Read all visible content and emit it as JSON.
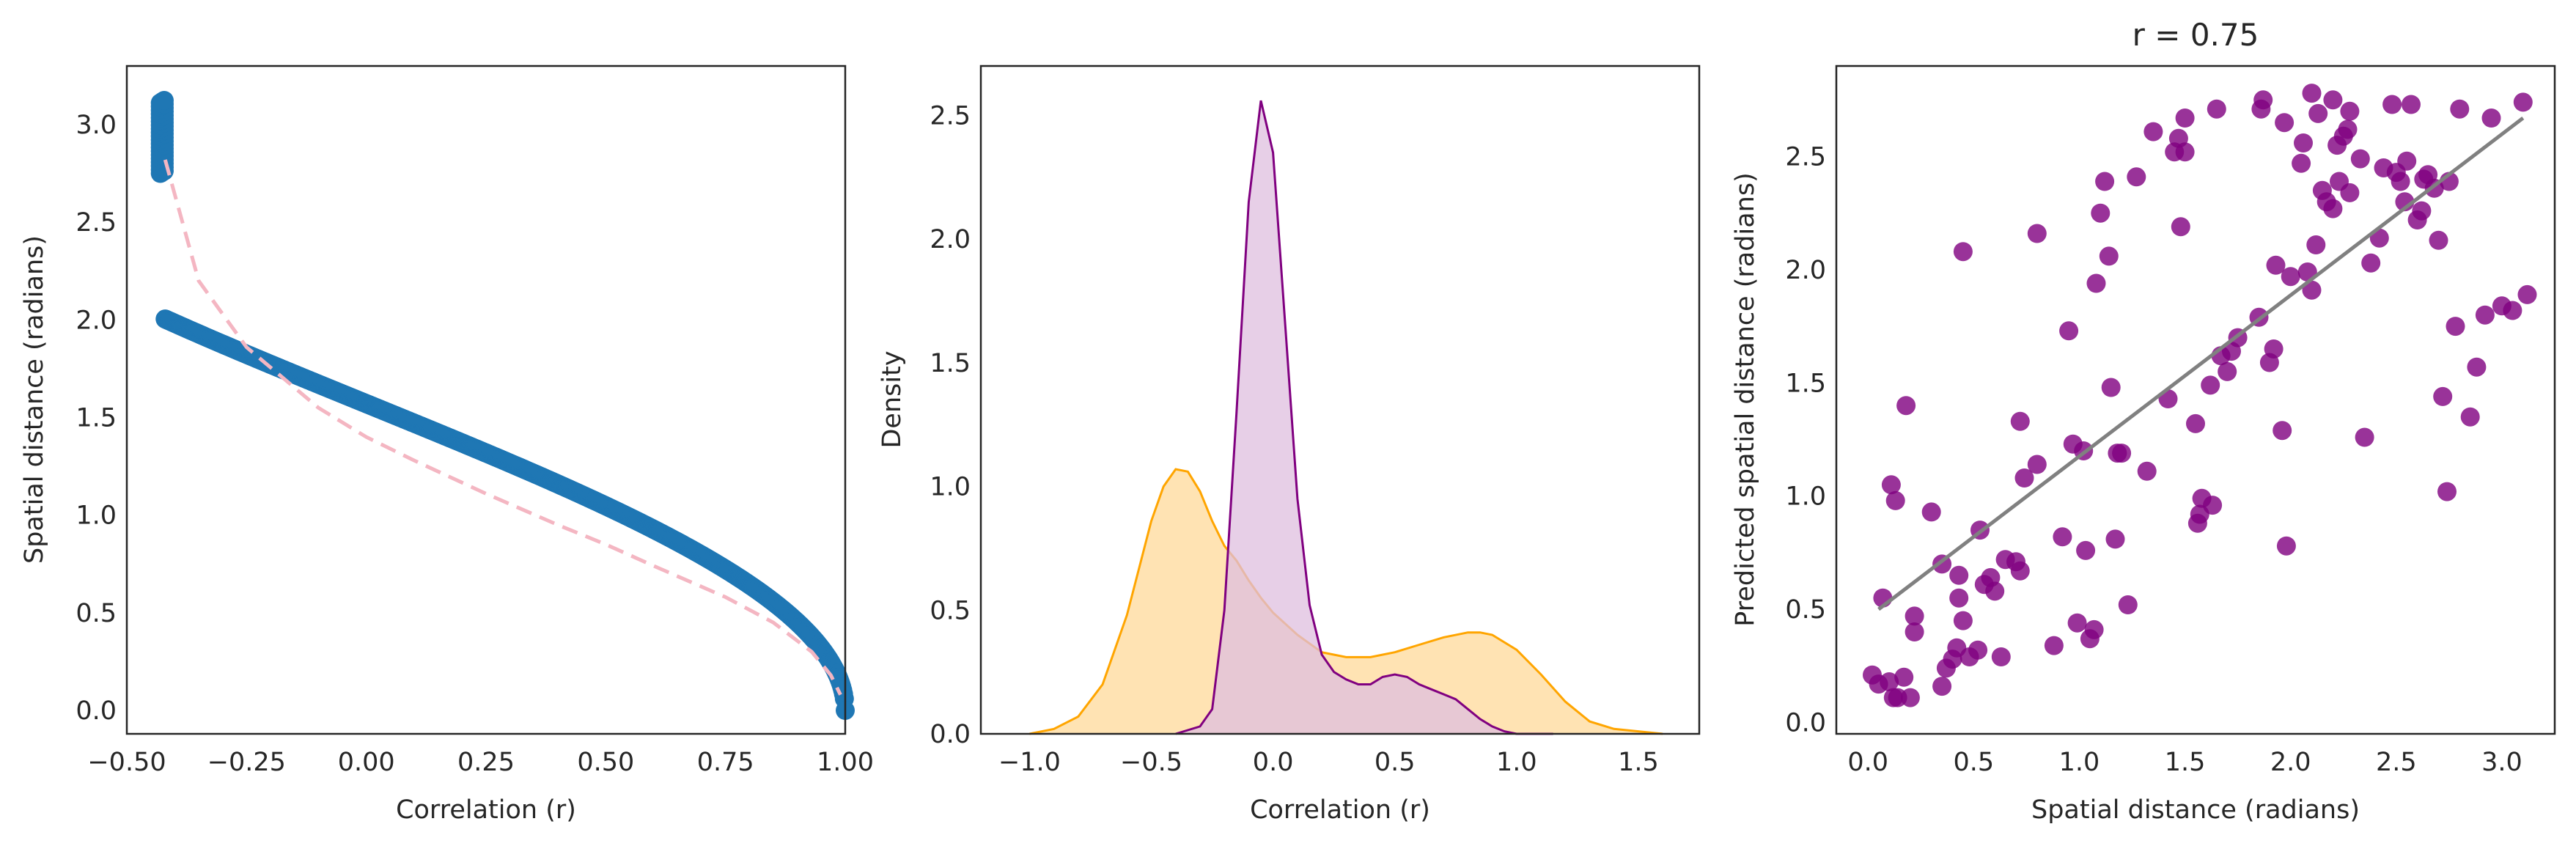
{
  "chart_data": [
    {
      "type": "scatter",
      "title": "",
      "xlabel": "Correlation (r)",
      "ylabel": "Spatial distance (radians)",
      "xlim": [
        -0.5,
        1.0
      ],
      "ylim": [
        -0.12,
        3.3
      ],
      "xticks": [
        "−0.50",
        "−0.25",
        "0.00",
        "0.25",
        "0.50",
        "0.75",
        "1.00"
      ],
      "xtick_values": [
        -0.5,
        -0.25,
        0.0,
        0.25,
        0.5,
        0.75,
        1.0
      ],
      "yticks": [
        "0.0",
        "0.5",
        "1.0",
        "1.5",
        "2.0",
        "2.5",
        "3.0"
      ],
      "ytick_values": [
        0.0,
        0.5,
        1.0,
        1.5,
        2.0,
        2.5,
        3.0
      ],
      "grid": false,
      "series": [
        {
          "kind": "points",
          "color": "#1f77b4",
          "relation": "y = arccos(r)",
          "x_range": [
            -0.42,
            1.0
          ],
          "n_points": 800
        },
        {
          "kind": "fit-line",
          "color": "#f4b6c2",
          "style": "dashed",
          "x": [
            -0.42,
            -0.35,
            -0.25,
            -0.1,
            0.0,
            0.1,
            0.25,
            0.4,
            0.5,
            0.6,
            0.75,
            0.85,
            0.93,
            0.97,
            0.99
          ],
          "y": [
            2.82,
            2.2,
            1.86,
            1.55,
            1.4,
            1.28,
            1.11,
            0.95,
            0.85,
            0.74,
            0.58,
            0.45,
            0.3,
            0.18,
            0.08
          ]
        }
      ]
    },
    {
      "type": "area",
      "title": "",
      "xlabel": "Correlation (r)",
      "ylabel": "Density",
      "xlim": [
        -1.2,
        1.75
      ],
      "ylim": [
        0,
        2.7
      ],
      "xticks": [
        "−1.0",
        "−0.5",
        "0.0",
        "0.5",
        "1.0",
        "1.5"
      ],
      "xtick_values": [
        -1.0,
        -0.5,
        0.0,
        0.5,
        1.0,
        1.5
      ],
      "yticks": [
        "0.0",
        "0.5",
        "1.0",
        "1.5",
        "2.0",
        "2.5"
      ],
      "ytick_values": [
        0.0,
        0.5,
        1.0,
        1.5,
        2.0,
        2.5
      ],
      "grid": false,
      "series": [
        {
          "line_color": "#800080",
          "fill_color": "#dfbfdf",
          "x": [
            -0.4,
            -0.3,
            -0.25,
            -0.2,
            -0.15,
            -0.1,
            -0.05,
            0.0,
            0.05,
            0.1,
            0.15,
            0.2,
            0.25,
            0.3,
            0.35,
            0.4,
            0.45,
            0.5,
            0.55,
            0.6,
            0.65,
            0.7,
            0.75,
            0.8,
            0.85,
            0.9,
            0.95,
            1.0,
            1.05,
            1.1,
            1.15
          ],
          "y": [
            0.0,
            0.03,
            0.1,
            0.5,
            1.3,
            2.15,
            2.56,
            2.35,
            1.65,
            0.95,
            0.52,
            0.32,
            0.25,
            0.22,
            0.2,
            0.2,
            0.23,
            0.24,
            0.23,
            0.2,
            0.18,
            0.16,
            0.14,
            0.1,
            0.06,
            0.03,
            0.01,
            0.0,
            0.0,
            0.0,
            0.0
          ]
        },
        {
          "line_color": "#ffa500",
          "fill_color": "#ffe3b3",
          "x": [
            -1.0,
            -0.9,
            -0.8,
            -0.7,
            -0.6,
            -0.5,
            -0.45,
            -0.4,
            -0.35,
            -0.3,
            -0.25,
            -0.2,
            -0.15,
            -0.1,
            -0.05,
            0.0,
            0.1,
            0.2,
            0.3,
            0.4,
            0.5,
            0.6,
            0.7,
            0.8,
            0.85,
            0.9,
            1.0,
            1.1,
            1.2,
            1.3,
            1.4,
            1.5,
            1.6
          ],
          "y": [
            0.0,
            0.02,
            0.07,
            0.2,
            0.48,
            0.86,
            1.0,
            1.07,
            1.06,
            0.98,
            0.86,
            0.76,
            0.7,
            0.62,
            0.55,
            0.49,
            0.4,
            0.33,
            0.31,
            0.31,
            0.33,
            0.36,
            0.39,
            0.41,
            0.41,
            0.4,
            0.34,
            0.24,
            0.13,
            0.05,
            0.02,
            0.01,
            0.0
          ]
        }
      ]
    },
    {
      "type": "scatter",
      "title": "r = 0.75",
      "xlabel": "Spatial distance (radians)",
      "ylabel": "Predicted spatial distance (radians)",
      "xlim": [
        -0.15,
        3.25
      ],
      "ylim": [
        -0.05,
        2.9
      ],
      "xticks": [
        "0.0",
        "0.5",
        "1.0",
        "1.5",
        "2.0",
        "2.5",
        "3.0"
      ],
      "xtick_values": [
        0.0,
        0.5,
        1.0,
        1.5,
        2.0,
        2.5,
        3.0
      ],
      "yticks": [
        "0.0",
        "0.5",
        "1.0",
        "1.5",
        "2.0",
        "2.5"
      ],
      "ytick_values": [
        0.0,
        0.5,
        1.0,
        1.5,
        2.0,
        2.5
      ],
      "grid": false,
      "point_color": "#800080",
      "fit_line": {
        "color": "#808080",
        "x": [
          0.05,
          3.1
        ],
        "y": [
          0.5,
          2.67
        ]
      },
      "points": [
        [
          0.02,
          0.21
        ],
        [
          0.05,
          0.17
        ],
        [
          0.1,
          0.18
        ],
        [
          0.12,
          0.11
        ],
        [
          0.14,
          0.11
        ],
        [
          0.17,
          0.2
        ],
        [
          0.2,
          0.11
        ],
        [
          0.07,
          0.55
        ],
        [
          0.11,
          1.05
        ],
        [
          0.13,
          0.98
        ],
        [
          0.18,
          1.4
        ],
        [
          0.22,
          0.47
        ],
        [
          0.22,
          0.4
        ],
        [
          0.3,
          0.93
        ],
        [
          0.35,
          0.16
        ],
        [
          0.37,
          0.24
        ],
        [
          0.4,
          0.28
        ],
        [
          0.35,
          0.7
        ],
        [
          0.42,
          0.33
        ],
        [
          0.43,
          0.65
        ],
        [
          0.43,
          0.55
        ],
        [
          0.45,
          0.45
        ],
        [
          0.48,
          0.29
        ],
        [
          0.52,
          0.32
        ],
        [
          0.53,
          0.85
        ],
        [
          0.45,
          2.08
        ],
        [
          0.55,
          0.61
        ],
        [
          0.58,
          0.64
        ],
        [
          0.6,
          0.58
        ],
        [
          0.63,
          0.29
        ],
        [
          0.65,
          0.72
        ],
        [
          0.7,
          0.71
        ],
        [
          0.72,
          0.67
        ],
        [
          0.72,
          1.33
        ],
        [
          0.74,
          1.08
        ],
        [
          0.8,
          1.14
        ],
        [
          0.8,
          2.16
        ],
        [
          0.88,
          0.34
        ],
        [
          0.92,
          0.82
        ],
        [
          0.95,
          1.73
        ],
        [
          0.97,
          1.23
        ],
        [
          0.99,
          0.44
        ],
        [
          1.02,
          1.2
        ],
        [
          1.03,
          0.76
        ],
        [
          1.05,
          0.37
        ],
        [
          1.07,
          0.41
        ],
        [
          1.08,
          1.94
        ],
        [
          1.1,
          2.25
        ],
        [
          1.12,
          2.39
        ],
        [
          1.14,
          2.06
        ],
        [
          1.15,
          1.48
        ],
        [
          1.17,
          0.81
        ],
        [
          1.18,
          1.19
        ],
        [
          1.2,
          1.19
        ],
        [
          1.23,
          0.52
        ],
        [
          1.27,
          2.41
        ],
        [
          1.32,
          1.11
        ],
        [
          1.35,
          2.61
        ],
        [
          1.42,
          1.43
        ],
        [
          1.45,
          2.52
        ],
        [
          1.47,
          2.58
        ],
        [
          1.48,
          2.19
        ],
        [
          1.5,
          2.52
        ],
        [
          1.5,
          2.67
        ],
        [
          1.55,
          1.32
        ],
        [
          1.56,
          0.88
        ],
        [
          1.57,
          0.92
        ],
        [
          1.58,
          0.99
        ],
        [
          1.62,
          1.49
        ],
        [
          1.63,
          0.96
        ],
        [
          1.65,
          2.71
        ],
        [
          1.67,
          1.62
        ],
        [
          1.7,
          1.55
        ],
        [
          1.72,
          1.64
        ],
        [
          1.75,
          1.7
        ],
        [
          1.85,
          1.79
        ],
        [
          1.86,
          2.71
        ],
        [
          1.87,
          2.75
        ],
        [
          1.9,
          1.59
        ],
        [
          1.92,
          1.65
        ],
        [
          1.93,
          2.02
        ],
        [
          1.96,
          1.29
        ],
        [
          1.98,
          0.78
        ],
        [
          1.97,
          2.65
        ],
        [
          2.0,
          1.97
        ],
        [
          2.05,
          2.47
        ],
        [
          2.06,
          2.56
        ],
        [
          2.08,
          1.99
        ],
        [
          2.1,
          2.78
        ],
        [
          2.1,
          1.91
        ],
        [
          2.12,
          2.11
        ],
        [
          2.13,
          2.69
        ],
        [
          2.15,
          2.35
        ],
        [
          2.17,
          2.3
        ],
        [
          2.2,
          2.75
        ],
        [
          2.2,
          2.27
        ],
        [
          2.22,
          2.55
        ],
        [
          2.23,
          2.39
        ],
        [
          2.25,
          2.59
        ],
        [
          2.27,
          2.62
        ],
        [
          2.28,
          2.7
        ],
        [
          2.28,
          2.34
        ],
        [
          2.33,
          2.49
        ],
        [
          2.35,
          1.26
        ],
        [
          2.38,
          2.03
        ],
        [
          2.42,
          2.14
        ],
        [
          2.44,
          2.45
        ],
        [
          2.48,
          2.73
        ],
        [
          2.5,
          2.43
        ],
        [
          2.52,
          2.39
        ],
        [
          2.54,
          2.3
        ],
        [
          2.55,
          2.48
        ],
        [
          2.57,
          2.73
        ],
        [
          2.6,
          2.22
        ],
        [
          2.62,
          2.26
        ],
        [
          2.63,
          2.4
        ],
        [
          2.65,
          2.42
        ],
        [
          2.68,
          2.36
        ],
        [
          2.7,
          2.13
        ],
        [
          2.72,
          1.44
        ],
        [
          2.74,
          1.02
        ],
        [
          2.75,
          2.39
        ],
        [
          2.78,
          1.75
        ],
        [
          2.8,
          2.71
        ],
        [
          2.85,
          1.35
        ],
        [
          2.88,
          1.57
        ],
        [
          2.92,
          1.8
        ],
        [
          2.95,
          2.67
        ],
        [
          3.0,
          1.84
        ],
        [
          3.05,
          1.82
        ],
        [
          3.1,
          2.74
        ],
        [
          3.12,
          1.89
        ]
      ]
    }
  ]
}
